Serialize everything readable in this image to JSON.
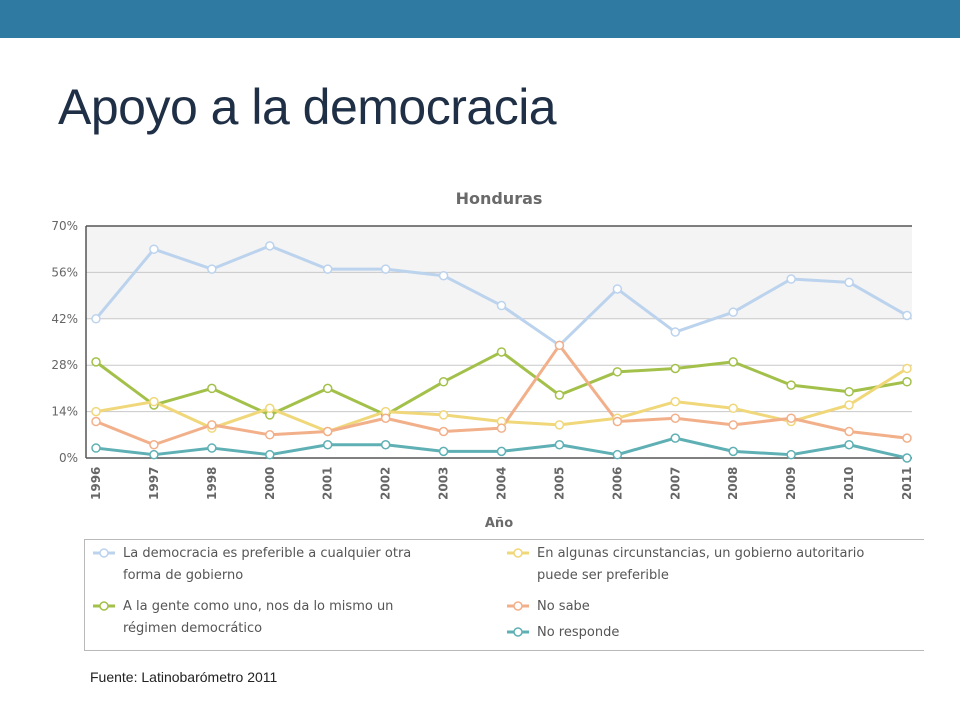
{
  "slide": {
    "title": "Apoyo a la democracia",
    "source": "Fuente: Latinobarómetro 2011",
    "bar_color": "#2e7aa3"
  },
  "chart_data": {
    "type": "line",
    "title": "Honduras",
    "xlabel": "Año",
    "ylabel": "",
    "x": [
      "1996",
      "1997",
      "1998",
      "2000",
      "2001",
      "2002",
      "2003",
      "2004",
      "2005",
      "2006",
      "2007",
      "2008",
      "2009",
      "2010",
      "2011"
    ],
    "yticks": [
      "0%",
      "14%",
      "28%",
      "42%",
      "56%",
      "70%"
    ],
    "ylim": [
      0,
      70
    ],
    "grid": true,
    "legend_position": "bottom",
    "series": [
      {
        "name": "La democracia es preferible a cualquier otra\nforma de gobierno",
        "color": "#bcd3ee",
        "values": [
          42,
          63,
          57,
          64,
          57,
          57,
          55,
          46,
          34,
          51,
          38,
          44,
          54,
          53,
          43
        ]
      },
      {
        "name": "A la gente como uno, nos da lo mismo un\nrégimen democrático",
        "color": "#a3c14a",
        "values": [
          29,
          16,
          21,
          13,
          21,
          13,
          23,
          32,
          19,
          26,
          27,
          29,
          22,
          20,
          23
        ]
      },
      {
        "name": "En algunas circunstancias, un gobierno autoritario\npuede ser preferible",
        "color": "#f0d77a",
        "values": [
          14,
          17,
          9,
          15,
          8,
          14,
          13,
          11,
          10,
          12,
          17,
          15,
          11,
          16,
          27
        ]
      },
      {
        "name": "No sabe",
        "color": "#f2b08a",
        "values": [
          11,
          4,
          10,
          7,
          8,
          12,
          8,
          9,
          34,
          11,
          12,
          10,
          12,
          8,
          6
        ]
      },
      {
        "name": "No responde",
        "color": "#5fb0b4",
        "values": [
          3,
          1,
          3,
          1,
          4,
          4,
          2,
          2,
          4,
          1,
          6,
          2,
          1,
          4,
          0
        ]
      }
    ]
  }
}
